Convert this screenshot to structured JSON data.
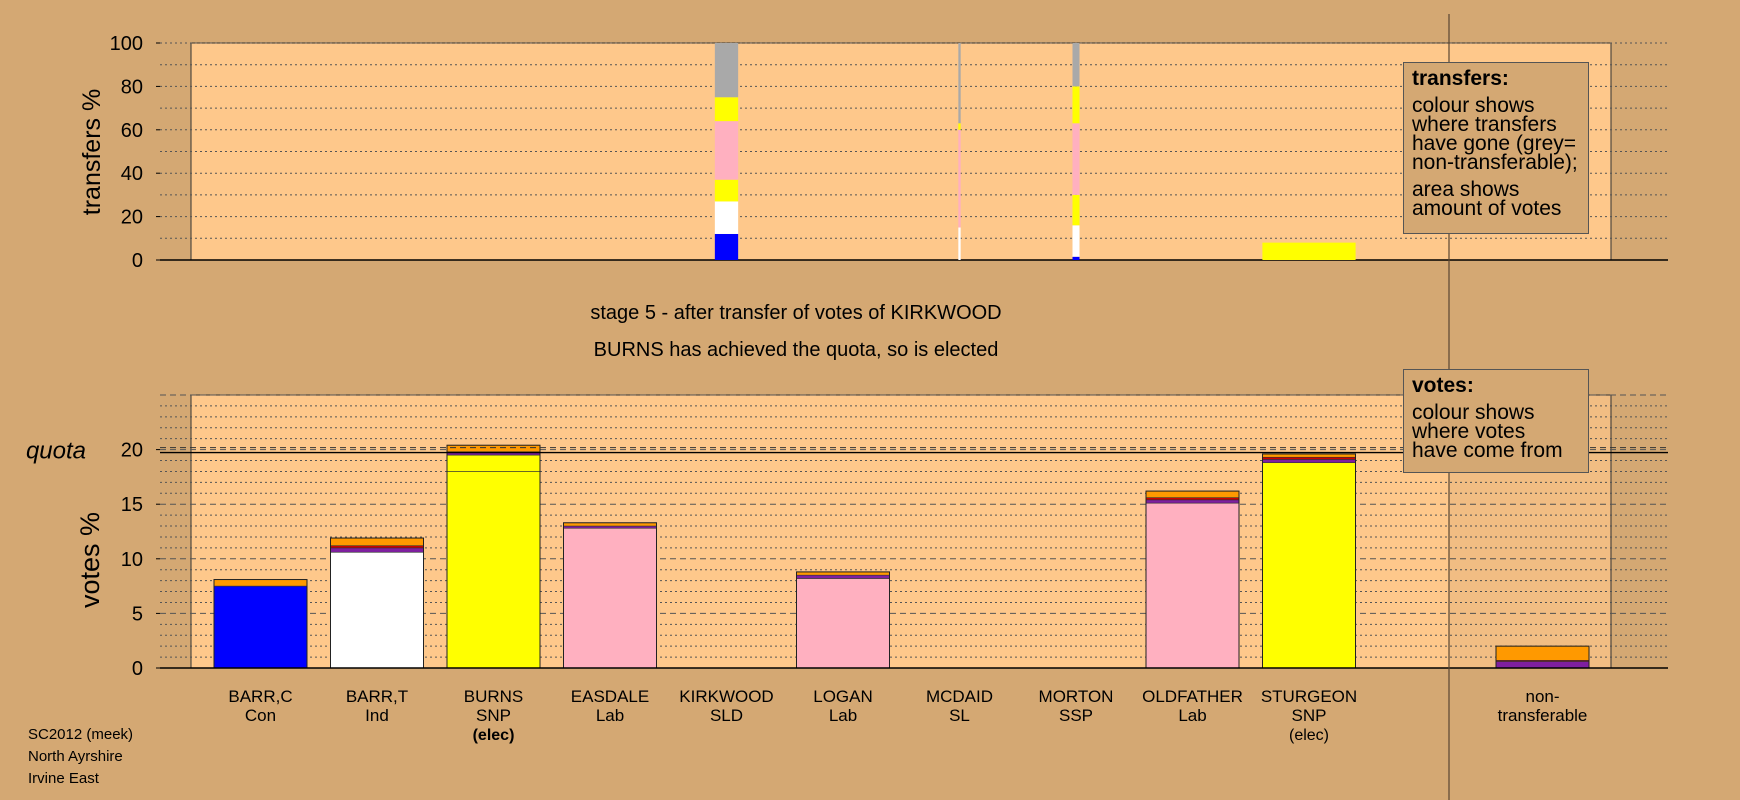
{
  "chart_data": {
    "type": "bar",
    "title": "stage 5 - after transfer of votes of KIRKWOOD",
    "subtitle": "BURNS has achieved the quota, so is elected",
    "candidates": [
      {
        "name": "BARR,C",
        "party": "Con",
        "status": ""
      },
      {
        "name": "BARR,T",
        "party": "Ind",
        "status": ""
      },
      {
        "name": "BURNS",
        "party": "SNP",
        "status": "(elec)"
      },
      {
        "name": "EASDALE",
        "party": "Lab",
        "status": ""
      },
      {
        "name": "KIRKWOOD",
        "party": "SLD",
        "status": ""
      },
      {
        "name": "LOGAN",
        "party": "Lab",
        "status": ""
      },
      {
        "name": "MCDAID",
        "party": "SL",
        "status": ""
      },
      {
        "name": "MORTON",
        "party": "SSP",
        "status": ""
      },
      {
        "name": "OLDFATHER",
        "party": "Lab",
        "status": ""
      },
      {
        "name": "STURGEON",
        "party": "SNP",
        "status": "(elec)"
      }
    ],
    "nontransferable_label": [
      "non-",
      "transferable"
    ],
    "colors": {
      "Con": "#0000ff",
      "Ind": "#ffffff",
      "SNP": "#ffff00",
      "Lab": "#ffb0c0",
      "SLD": "#ff9900",
      "SL": "#cc0000",
      "SSP": "#7f1fa0",
      "nontransferable": "#a9a9a9",
      "panel": "#fec88b",
      "background": "#d4a873"
    },
    "transfers_chart": {
      "ylabel": "transfers %",
      "ylim": [
        0,
        100
      ],
      "yticks": [
        0,
        20,
        40,
        60,
        80,
        100
      ],
      "bars": [
        {
          "x": 4.5,
          "width": 0.2,
          "segments": [
            {
              "party": "Con",
              "from": 0,
              "to": 12
            },
            {
              "party": "Ind",
              "from": 12,
              "to": 27
            },
            {
              "party": "SNP",
              "from": 27,
              "to": 37
            },
            {
              "party": "Lab",
              "from": 37,
              "to": 64
            },
            {
              "party": "SNP",
              "from": 64,
              "to": 75
            },
            {
              "party": "nontransferable",
              "from": 75,
              "to": 100
            }
          ]
        },
        {
          "x": 6.5,
          "width": 0.02,
          "segments": [
            {
              "party": "Ind",
              "from": 0,
              "to": 15
            },
            {
              "party": "Lab",
              "from": 15,
              "to": 60
            },
            {
              "party": "SNP",
              "from": 60,
              "to": 63
            },
            {
              "party": "nontransferable",
              "from": 63,
              "to": 100
            }
          ]
        },
        {
          "x": 7.5,
          "width": 0.06,
          "segments": [
            {
              "party": "Con",
              "from": 0,
              "to": 1.5
            },
            {
              "party": "Ind",
              "from": 1.5,
              "to": 16
            },
            {
              "party": "SNP",
              "from": 16,
              "to": 30
            },
            {
              "party": "Lab",
              "from": 30,
              "to": 63
            },
            {
              "party": "SNP",
              "from": 63,
              "to": 80
            },
            {
              "party": "nontransferable",
              "from": 80,
              "to": 100
            }
          ]
        },
        {
          "x": 9.5,
          "width": 0.8,
          "segments": [
            {
              "party": "SNP",
              "from": 0,
              "to": 8
            }
          ]
        }
      ]
    },
    "votes_chart": {
      "ylabel": "votes %",
      "quota_label": "quota",
      "quota": 20,
      "ylim": [
        0,
        25
      ],
      "yticks": [
        0,
        5,
        10,
        15,
        20
      ],
      "bars": [
        {
          "candidate": "BARR,C",
          "segments": [
            {
              "party": "Con",
              "from": 0,
              "to": 7.5
            },
            {
              "party": "SLD",
              "from": 7.5,
              "to": 8.1
            }
          ]
        },
        {
          "candidate": "BARR,T",
          "segments": [
            {
              "party": "Ind",
              "from": 0,
              "to": 10.6
            },
            {
              "party": "SSP",
              "from": 10.6,
              "to": 11.0
            },
            {
              "party": "SL",
              "from": 11.0,
              "to": 11.2
            },
            {
              "party": "SLD",
              "from": 11.2,
              "to": 11.9
            }
          ]
        },
        {
          "candidate": "BURNS",
          "segments": [
            {
              "party": "SNP",
              "from": 0,
              "to": 18.0
            },
            {
              "party": "SNP",
              "from": 18.0,
              "to": 19.5
            },
            {
              "party": "SSP",
              "from": 19.5,
              "to": 19.8
            },
            {
              "party": "SLD",
              "from": 19.8,
              "to": 20.4
            }
          ]
        },
        {
          "candidate": "EASDALE",
          "segments": [
            {
              "party": "Lab",
              "from": 0,
              "to": 12.8
            },
            {
              "party": "SSP",
              "from": 12.8,
              "to": 13.0
            },
            {
              "party": "SLD",
              "from": 13.0,
              "to": 13.3
            }
          ]
        },
        {
          "candidate": "KIRKWOOD",
          "segments": []
        },
        {
          "candidate": "LOGAN",
          "segments": [
            {
              "party": "Lab",
              "from": 0,
              "to": 8.2
            },
            {
              "party": "SSP",
              "from": 8.2,
              "to": 8.5
            },
            {
              "party": "SLD",
              "from": 8.5,
              "to": 8.8
            }
          ]
        },
        {
          "candidate": "MCDAID",
          "segments": []
        },
        {
          "candidate": "MORTON",
          "segments": []
        },
        {
          "candidate": "OLDFATHER",
          "segments": [
            {
              "party": "Lab",
              "from": 0,
              "to": 15.1
            },
            {
              "party": "SSP",
              "from": 15.1,
              "to": 15.4
            },
            {
              "party": "SL",
              "from": 15.4,
              "to": 15.6
            },
            {
              "party": "SLD",
              "from": 15.6,
              "to": 16.2
            }
          ]
        },
        {
          "candidate": "STURGEON",
          "segments": [
            {
              "party": "SNP",
              "from": 0,
              "to": 18.8
            },
            {
              "party": "SSP",
              "from": 18.8,
              "to": 19.1
            },
            {
              "party": "SL",
              "from": 19.1,
              "to": 19.3
            },
            {
              "party": "SLD",
              "from": 19.3,
              "to": 19.6
            }
          ]
        },
        {
          "candidate": "non-transferable",
          "segments": [
            {
              "party": "SSP",
              "from": 0,
              "to": 0.6
            },
            {
              "party": "SL",
              "from": 0.6,
              "to": 0.7
            },
            {
              "party": "SLD",
              "from": 0.7,
              "to": 2.0
            }
          ]
        }
      ]
    }
  },
  "legends": {
    "transfers": {
      "heading": "transfers:",
      "line1": "colour shows\nwhere transfers\nhave gone (grey=\nnon-transferable);",
      "line2": "area shows\namount of votes"
    },
    "votes": {
      "heading": "votes:",
      "line1": "colour shows\nwhere votes\nhave come from"
    }
  },
  "footnote": {
    "line1": "SC2012 (meek)",
    "line2": "North Ayrshire",
    "line3": "Irvine East"
  }
}
